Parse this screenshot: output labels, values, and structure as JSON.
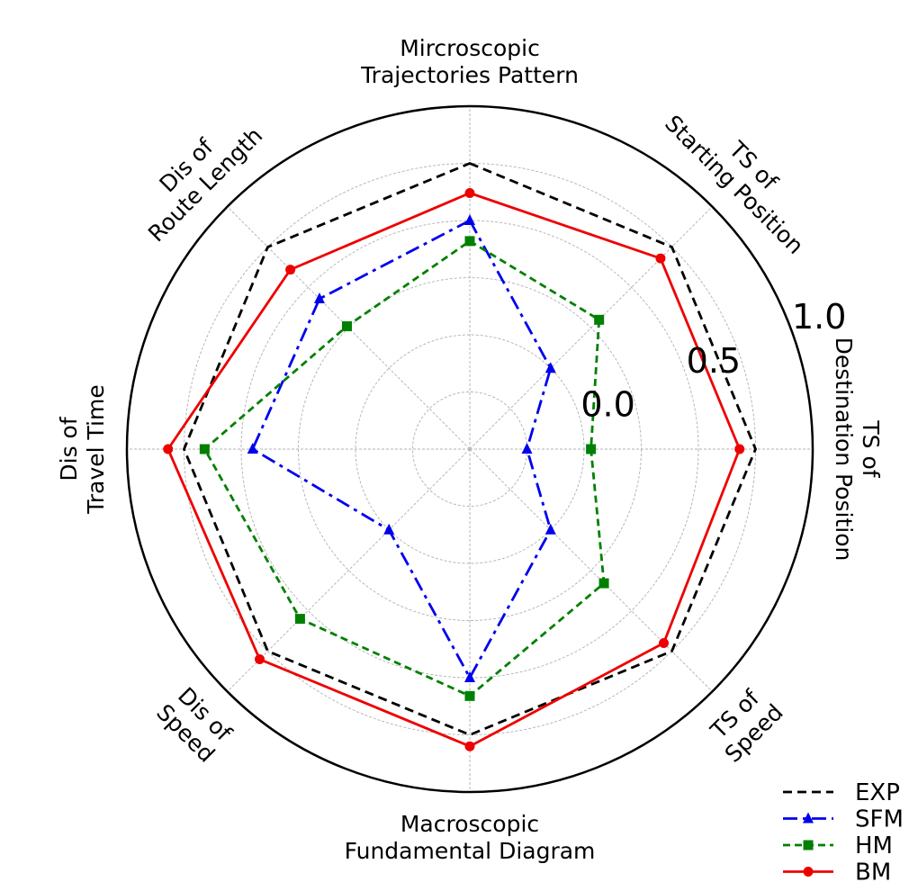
{
  "chart_data": {
    "type": "radar",
    "axes": [
      {
        "key": "mtp",
        "lines": [
          "Mircroscopic",
          "Trajectories Pattern"
        ]
      },
      {
        "key": "ts_start",
        "lines": [
          "TS of",
          "Starting Position"
        ]
      },
      {
        "key": "ts_dest",
        "lines": [
          "TS of",
          "Destination Position"
        ]
      },
      {
        "key": "ts_speed",
        "lines": [
          "TS of",
          "Speed"
        ]
      },
      {
        "key": "mfd",
        "lines": [
          "Macroscopic",
          "Fundamental Diagram"
        ]
      },
      {
        "key": "dis_speed",
        "lines": [
          "Dis of",
          "Speed"
        ]
      },
      {
        "key": "dis_tt",
        "lines": [
          "Dis of",
          "Travel Time"
        ]
      },
      {
        "key": "dis_rl",
        "lines": [
          "Dis of",
          "Route Length"
        ]
      }
    ],
    "radial_ticks": [
      0.0,
      0.5,
      1.0
    ],
    "radial_tick_labels": [
      "0.0",
      "0.5",
      "1.0"
    ],
    "rlim": [
      -0.5,
      1.0
    ],
    "grid": true,
    "legend_position": "bottom-right",
    "series": [
      {
        "name": "EXP",
        "color": "#000000",
        "dash": "10,6",
        "marker": "none",
        "values": [
          0.75,
          0.75,
          0.75,
          0.75,
          0.75,
          0.75,
          0.75,
          0.75
        ]
      },
      {
        "name": "SFM",
        "color": "#0000ee",
        "dash": "16,6,4,6",
        "marker": "triangle",
        "values": [
          0.5,
          0.0,
          -0.25,
          0.0,
          0.5,
          0.0,
          0.45,
          0.43
        ]
      },
      {
        "name": "HM",
        "color": "#008000",
        "dash": "8,5",
        "marker": "square",
        "values": [
          0.41,
          0.3,
          0.03,
          0.33,
          0.58,
          0.55,
          0.66,
          0.26
        ]
      },
      {
        "name": "BM",
        "color": "#ee0000",
        "dash": "none",
        "marker": "circle",
        "values": [
          0.62,
          0.68,
          0.68,
          0.7,
          0.8,
          0.8,
          0.82,
          0.61
        ]
      }
    ]
  }
}
